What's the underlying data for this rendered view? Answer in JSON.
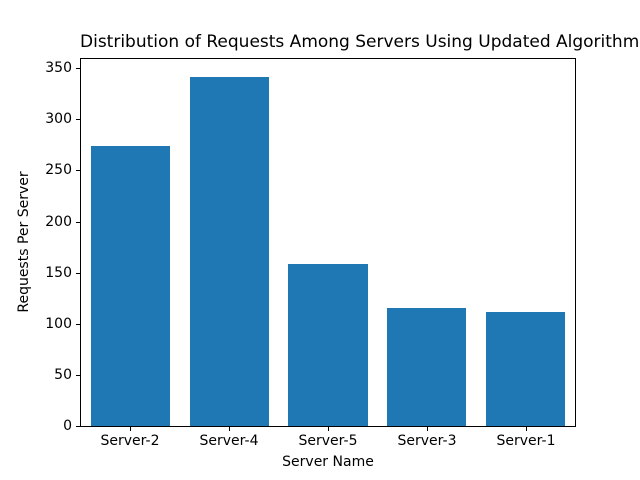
{
  "chart_data": {
    "type": "bar",
    "title": "Distribution of Requests Among Servers Using Updated Algorithm",
    "xlabel": "Server Name",
    "ylabel": "Requests Per Server",
    "categories": [
      "Server-2",
      "Server-4",
      "Server-5",
      "Server-3",
      "Server-1"
    ],
    "values": [
      274,
      341,
      158,
      115,
      112
    ],
    "yticks": [
      0,
      50,
      100,
      150,
      200,
      250,
      300,
      350
    ],
    "ylim": [
      0,
      359
    ],
    "grid": false,
    "legend_position": "none",
    "bar_color": "#1f77b4",
    "background_color": "#ffffff",
    "text_color": "#000000"
  }
}
